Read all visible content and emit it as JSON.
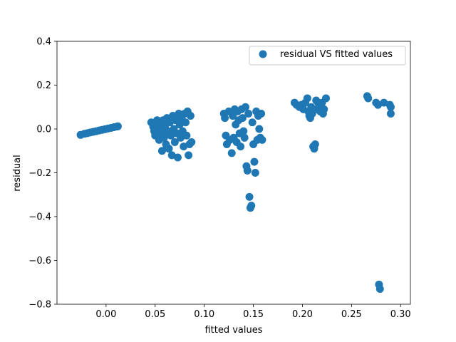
{
  "chart_data": {
    "type": "scatter",
    "xlabel": "fitted values",
    "ylabel": "residual",
    "xlim": [
      -0.05,
      0.31
    ],
    "ylim": [
      -0.8,
      0.4
    ],
    "xticks": [
      0.0,
      0.05,
      0.1,
      0.15,
      0.2,
      0.25,
      0.3
    ],
    "xtick_labels": [
      "0.00",
      "0.05",
      "0.10",
      "0.15",
      "0.20",
      "0.25",
      "0.30"
    ],
    "yticks": [
      0.4,
      0.2,
      0.0,
      -0.2,
      -0.4,
      -0.6,
      -0.8
    ],
    "ytick_labels": [
      "0.4",
      "0.2",
      "0.0",
      "−0.2",
      "−0.4",
      "−0.6",
      "−0.8"
    ],
    "grid": false,
    "legend_position": "top-right",
    "series": [
      {
        "name": "residual VS fitted values",
        "color": "#1f77b4",
        "points": [
          [
            -0.026,
            -0.027
          ],
          [
            -0.022,
            -0.022
          ],
          [
            -0.019,
            -0.019
          ],
          [
            -0.016,
            -0.016
          ],
          [
            -0.013,
            -0.013
          ],
          [
            -0.01,
            -0.01
          ],
          [
            -0.007,
            -0.007
          ],
          [
            -0.004,
            -0.004
          ],
          [
            -0.001,
            -0.001
          ],
          [
            0.002,
            0.002
          ],
          [
            0.005,
            0.005
          ],
          [
            0.008,
            0.008
          ],
          [
            0.011,
            0.011
          ],
          [
            0.012,
            0.012
          ],
          [
            0.046,
            0.03
          ],
          [
            0.048,
            0.01
          ],
          [
            0.049,
            -0.01
          ],
          [
            0.05,
            -0.03
          ],
          [
            0.052,
            0.04
          ],
          [
            0.053,
            0.0
          ],
          [
            0.054,
            -0.05
          ],
          [
            0.055,
            0.02
          ],
          [
            0.056,
            -0.02
          ],
          [
            0.057,
            -0.1
          ],
          [
            0.058,
            0.04
          ],
          [
            0.059,
            -0.04
          ],
          [
            0.06,
            0.01
          ],
          [
            0.061,
            -0.07
          ],
          [
            0.062,
            0.05
          ],
          [
            0.063,
            -0.01
          ],
          [
            0.064,
            -0.09
          ],
          [
            0.065,
            0.03
          ],
          [
            0.066,
            -0.03
          ],
          [
            0.067,
            -0.12
          ],
          [
            0.068,
            0.06
          ],
          [
            0.069,
            0.0
          ],
          [
            0.07,
            -0.06
          ],
          [
            0.071,
            0.04
          ],
          [
            0.072,
            -0.02
          ],
          [
            0.073,
            -0.13
          ],
          [
            0.074,
            0.07
          ],
          [
            0.075,
            0.02
          ],
          [
            0.076,
            -0.04
          ],
          [
            0.077,
            0.05
          ],
          [
            0.078,
            -0.01
          ],
          [
            0.079,
            -0.08
          ],
          [
            0.08,
            0.07
          ],
          [
            0.081,
            0.03
          ],
          [
            0.082,
            -0.03
          ],
          [
            0.083,
            0.08
          ],
          [
            0.084,
            -0.12
          ],
          [
            0.085,
            -0.07
          ],
          [
            0.086,
            0.06
          ],
          [
            0.087,
            -0.06
          ],
          [
            0.12,
            0.07
          ],
          [
            0.121,
            0.05
          ],
          [
            0.122,
            -0.03
          ],
          [
            0.123,
            -0.07
          ],
          [
            0.125,
            0.08
          ],
          [
            0.126,
            -0.05
          ],
          [
            0.128,
            -0.11
          ],
          [
            0.129,
            0.06
          ],
          [
            0.13,
            -0.04
          ],
          [
            0.131,
            0.09
          ],
          [
            0.132,
            0.02
          ],
          [
            0.133,
            -0.06
          ],
          [
            0.134,
            0.08
          ],
          [
            0.135,
            0.04
          ],
          [
            0.136,
            -0.02
          ],
          [
            0.137,
            -0.08
          ],
          [
            0.138,
            0.09
          ],
          [
            0.139,
            0.05
          ],
          [
            0.14,
            -0.01
          ],
          [
            0.141,
            -0.04
          ],
          [
            0.142,
            0.1
          ],
          [
            0.143,
            -0.17
          ],
          [
            0.144,
            -0.19
          ],
          [
            0.145,
            0.07
          ],
          [
            0.146,
            -0.31
          ],
          [
            0.147,
            -0.36
          ],
          [
            0.148,
            -0.35
          ],
          [
            0.149,
            0.03
          ],
          [
            0.15,
            -0.07
          ],
          [
            0.151,
            -0.15
          ],
          [
            0.152,
            -0.2
          ],
          [
            0.153,
            0.08
          ],
          [
            0.154,
            -0.05
          ],
          [
            0.155,
            0.06
          ],
          [
            0.156,
            0.0
          ],
          [
            0.157,
            -0.04
          ],
          [
            0.158,
            0.07
          ],
          [
            0.159,
            -0.05
          ],
          [
            0.192,
            0.12
          ],
          [
            0.194,
            0.11
          ],
          [
            0.197,
            0.1
          ],
          [
            0.199,
            0.11
          ],
          [
            0.201,
            0.09
          ],
          [
            0.203,
            0.12
          ],
          [
            0.205,
            0.14
          ],
          [
            0.206,
            0.08
          ],
          [
            0.207,
            0.06
          ],
          [
            0.208,
            0.05
          ],
          [
            0.209,
            0.1
          ],
          [
            0.21,
            0.07
          ],
          [
            0.211,
            -0.08
          ],
          [
            0.212,
            -0.09
          ],
          [
            0.213,
            -0.07
          ],
          [
            0.214,
            0.13
          ],
          [
            0.215,
            0.09
          ],
          [
            0.216,
            0.12
          ],
          [
            0.217,
            0.11
          ],
          [
            0.218,
            0.08
          ],
          [
            0.219,
            0.1
          ],
          [
            0.22,
            0.12
          ],
          [
            0.221,
            0.07
          ],
          [
            0.222,
            0.09
          ],
          [
            0.224,
            0.14
          ],
          [
            0.266,
            0.15
          ],
          [
            0.267,
            0.14
          ],
          [
            0.275,
            0.12
          ],
          [
            0.277,
            0.11
          ],
          [
            0.278,
            -0.71
          ],
          [
            0.279,
            -0.73
          ],
          [
            0.283,
            0.12
          ],
          [
            0.289,
            0.11
          ],
          [
            0.29,
            0.07
          ],
          [
            0.29,
            0.1
          ]
        ]
      }
    ]
  }
}
